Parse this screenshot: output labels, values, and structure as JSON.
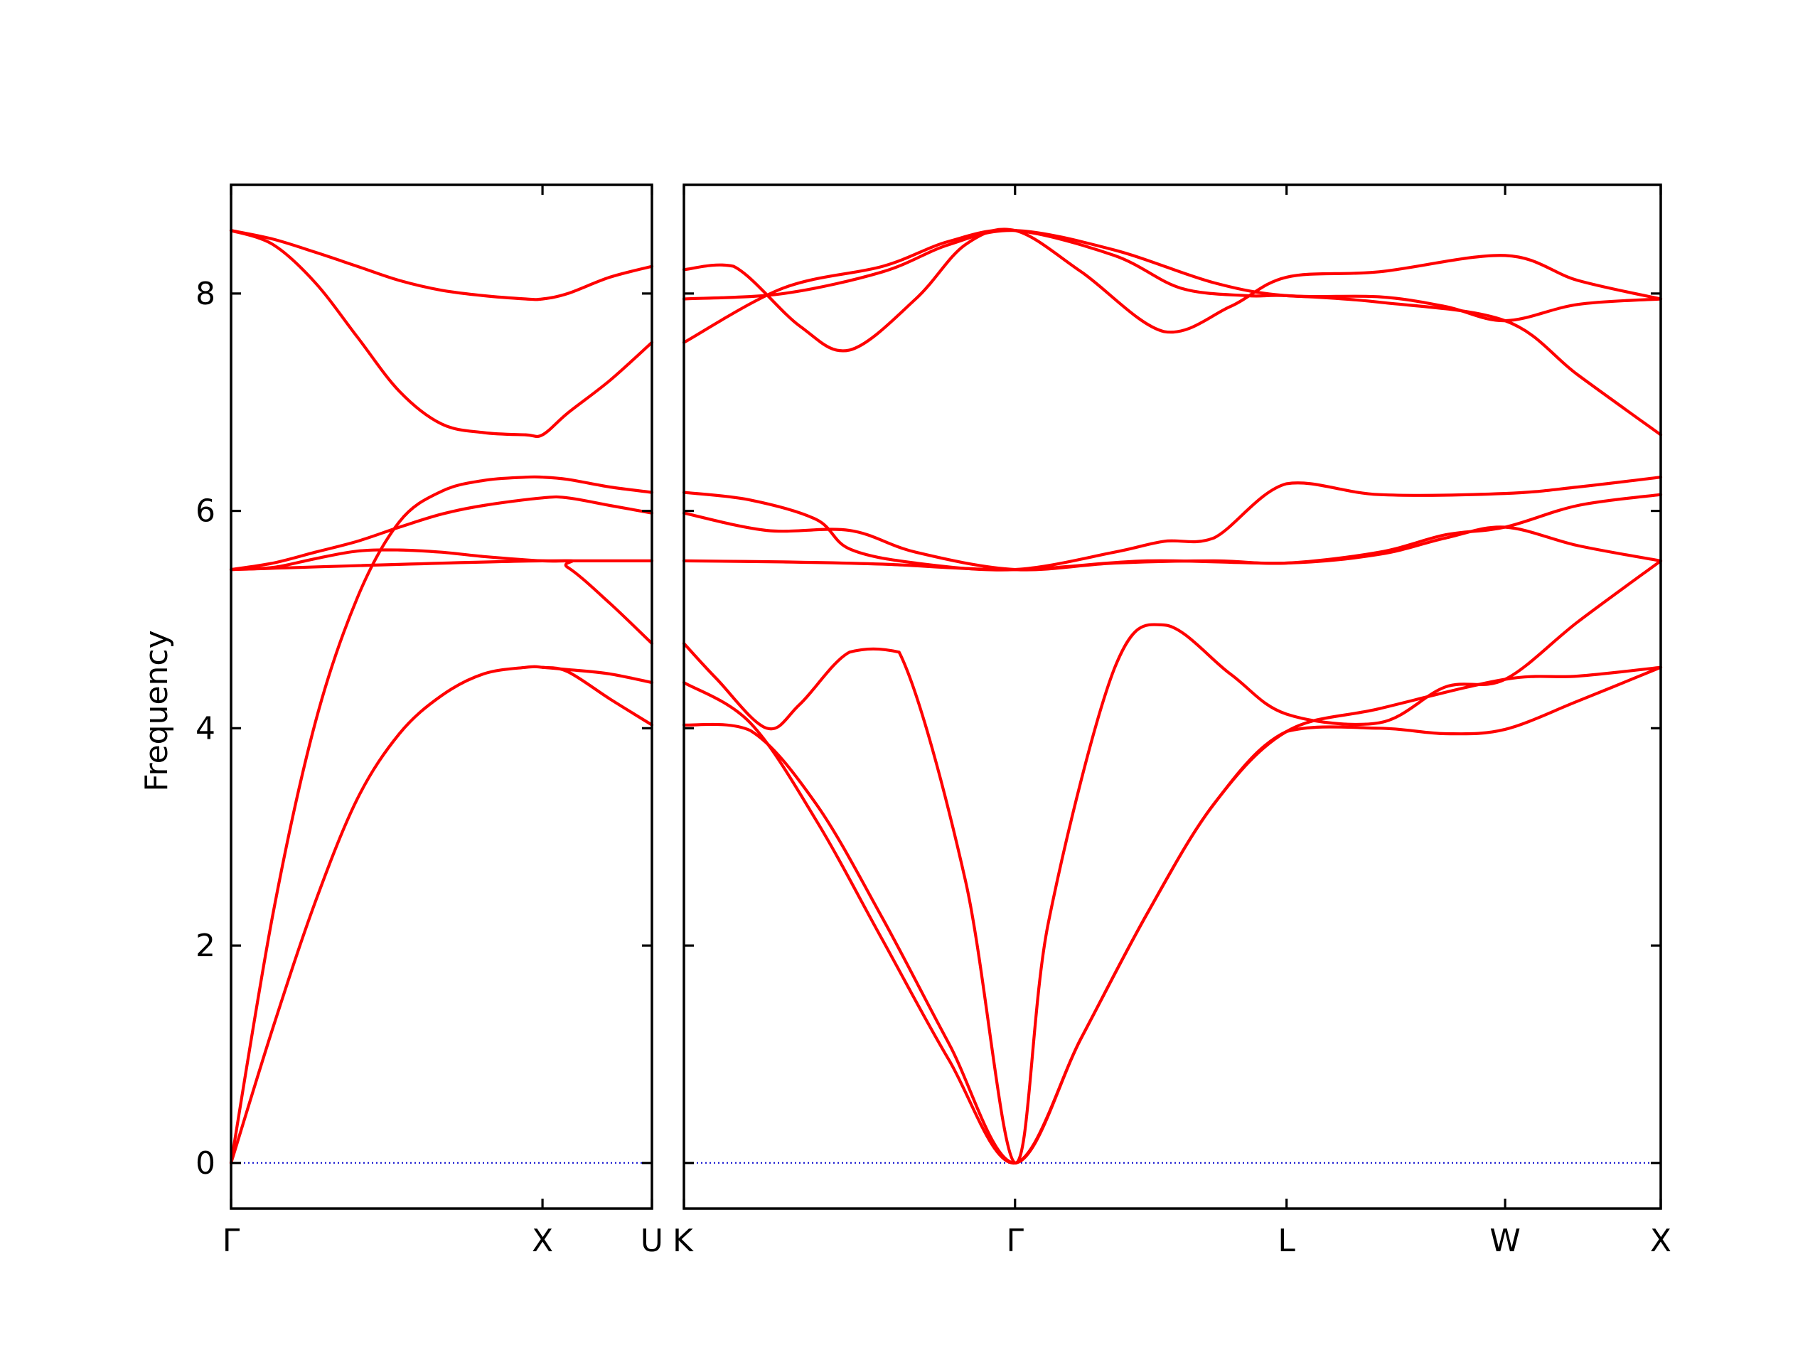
{
  "chart_data": {
    "type": "line",
    "ylabel": "Frequency",
    "ylim": [
      -0.42,
      9.0
    ],
    "yticks": [
      "0",
      "2",
      "4",
      "6",
      "8"
    ],
    "ytick_values": [
      0,
      2,
      4,
      6,
      8
    ],
    "colors": {
      "band": "#ff0000",
      "zero_line": "#0000cc",
      "axis": "#000000"
    },
    "grid": false,
    "panels": [
      {
        "xlim": [
          0,
          1.0
        ],
        "ticks": [
          {
            "x": 0,
            "label": "Γ"
          },
          {
            "x": 0.74,
            "label": "X"
          },
          {
            "x": 1.0,
            "label": "U"
          }
        ],
        "bands": [
          {
            "x": [
              0,
              0.1,
              0.2,
              0.3,
              0.4,
              0.5,
              0.6,
              0.7,
              0.74,
              0.8,
              0.9,
              1.0
            ],
            "y": [
              8.58,
              8.5,
              8.38,
              8.25,
              8.12,
              8.03,
              7.98,
              7.95,
              7.95,
              8.0,
              8.15,
              8.25
            ]
          },
          {
            "x": [
              0,
              0.1,
              0.2,
              0.3,
              0.4,
              0.5,
              0.6,
              0.7,
              0.74,
              0.8,
              0.9,
              1.0
            ],
            "y": [
              8.58,
              8.45,
              8.1,
              7.6,
              7.1,
              6.8,
              6.72,
              6.7,
              6.7,
              6.9,
              7.2,
              7.55
            ]
          },
          {
            "x": [
              0,
              0.1,
              0.2,
              0.3,
              0.4,
              0.5,
              0.6,
              0.74,
              0.8,
              0.9,
              1.0
            ],
            "y": [
              5.46,
              5.52,
              5.62,
              5.72,
              5.85,
              5.97,
              6.05,
              6.12,
              6.12,
              6.05,
              5.98
            ]
          },
          {
            "x": [
              0,
              0.1,
              0.2,
              0.3,
              0.4,
              0.5,
              0.6,
              0.74,
              0.8,
              0.9,
              1.0
            ],
            "y": [
              5.46,
              5.48,
              5.56,
              5.63,
              5.64,
              5.62,
              5.58,
              5.54,
              5.54,
              5.54,
              5.54
            ]
          },
          {
            "x": [
              0,
              0.1,
              0.2,
              0.3,
              0.4,
              0.5,
              0.6,
              0.7,
              0.74,
              0.8,
              0.9,
              1.0
            ],
            "y": [
              0.0,
              2.3,
              4.05,
              5.2,
              5.9,
              6.18,
              6.28,
              6.31,
              6.31,
              6.29,
              6.22,
              6.17
            ]
          },
          {
            "x": [
              0,
              0.74,
              0.8,
              0.9,
              1.0
            ],
            "y": [
              5.46,
              5.54,
              5.48,
              5.15,
              4.78
            ]
          },
          {
            "x": [
              0,
              0.1,
              0.2,
              0.3,
              0.4,
              0.5,
              0.6,
              0.7,
              0.74,
              0.8,
              0.9,
              1.0
            ],
            "y": [
              0.0,
              1.25,
              2.4,
              3.35,
              3.95,
              4.3,
              4.5,
              4.56,
              4.56,
              4.52,
              4.27,
              4.03
            ]
          },
          {
            "x": [
              0.74,
              0.8,
              0.9,
              1.0
            ],
            "y": [
              4.56,
              4.54,
              4.5,
              4.42
            ]
          }
        ],
        "zero_line": true
      },
      {
        "xlim": [
          0,
          2.95
        ],
        "ticks": [
          {
            "x": 0,
            "label": "K"
          },
          {
            "x": 1.0,
            "label": "Γ"
          },
          {
            "x": 1.82,
            "label": "L"
          },
          {
            "x": 2.48,
            "label": "W"
          },
          {
            "x": 2.95,
            "label": "X"
          }
        ],
        "bands": [
          {
            "x": [
              0,
              0.3,
              0.6,
              0.8,
              1.0,
              1.3,
              1.6,
              1.82,
              2.1,
              2.3,
              2.48,
              2.7,
              2.95
            ],
            "y": [
              7.95,
              8.0,
              8.2,
              8.45,
              8.58,
              8.4,
              8.1,
              7.98,
              7.97,
              7.88,
              7.75,
              7.9,
              7.95
            ]
          },
          {
            "x": [
              0,
              0.3,
              0.6,
              0.8,
              1.0,
              1.3,
              1.5,
              1.7,
              1.82,
              2.1,
              2.48,
              2.7,
              2.95
            ],
            "y": [
              7.55,
              8.05,
              8.25,
              8.48,
              8.58,
              8.35,
              8.05,
              7.98,
              7.98,
              7.92,
              7.75,
              7.25,
              6.7
            ]
          },
          {
            "x": [
              0,
              0.15,
              0.35,
              0.5,
              0.7,
              0.85,
              1.0,
              1.2,
              1.45,
              1.65,
              1.82,
              2.1,
              2.48,
              2.7,
              2.95
            ],
            "y": [
              8.22,
              8.25,
              7.7,
              7.48,
              7.95,
              8.45,
              8.58,
              8.2,
              7.65,
              7.88,
              8.15,
              8.2,
              8.35,
              8.12,
              7.95
            ]
          },
          {
            "x": [
              0,
              0.2,
              0.4,
              0.5,
              0.7,
              1.0,
              1.3,
              1.45,
              1.6,
              1.82,
              2.1,
              2.48,
              2.7,
              2.95
            ],
            "y": [
              6.17,
              6.1,
              5.92,
              5.65,
              5.52,
              5.46,
              5.62,
              5.72,
              5.75,
              6.25,
              6.15,
              6.16,
              6.22,
              6.31
            ]
          },
          {
            "x": [
              0,
              0.25,
              0.5,
              0.7,
              1.0,
              1.3,
              1.6,
              1.82,
              2.1,
              2.3,
              2.48,
              2.7,
              2.95
            ],
            "y": [
              5.98,
              5.82,
              5.82,
              5.62,
              5.46,
              5.52,
              5.54,
              5.52,
              5.62,
              5.78,
              5.85,
              6.05,
              6.15
            ]
          },
          {
            "x": [
              0,
              0.3,
              0.6,
              1.0,
              1.4,
              1.82,
              2.1,
              2.3,
              2.48,
              2.7,
              2.95
            ],
            "y": [
              5.54,
              5.53,
              5.51,
              5.46,
              5.54,
              5.52,
              5.6,
              5.75,
              5.85,
              5.68,
              5.54
            ]
          },
          {
            "x": [
              0,
              0.1,
              0.25,
              0.35,
              0.5,
              0.65,
              0.85,
              1.0,
              1.1,
              1.3,
              1.45,
              1.65,
              1.82,
              2.1,
              2.3,
              2.48,
              2.7,
              2.95
            ],
            "y": [
              4.78,
              4.45,
              4.0,
              4.22,
              4.7,
              4.7,
              2.6,
              0.0,
              2.2,
              4.55,
              4.95,
              4.5,
              4.13,
              4.05,
              4.38,
              4.45,
              4.98,
              5.54
            ]
          },
          {
            "x": [
              0,
              0.2,
              0.4,
              0.6,
              0.8,
              1.0,
              1.2,
              1.4,
              1.6,
              1.82,
              2.1,
              2.48,
              2.7,
              2.95
            ],
            "y": [
              4.42,
              4.05,
              3.15,
              2.05,
              0.95,
              0.0,
              1.15,
              2.3,
              3.3,
              3.97,
              4.18,
              4.45,
              4.48,
              4.56
            ]
          },
          {
            "x": [
              0,
              0.2,
              0.4,
              0.6,
              0.8,
              1.0,
              1.2,
              1.4,
              1.6,
              1.82,
              2.1,
              2.3,
              2.48,
              2.7,
              2.95
            ],
            "y": [
              4.03,
              3.98,
              3.3,
              2.25,
              1.1,
              0.0,
              1.15,
              2.3,
              3.3,
              3.97,
              4.0,
              3.95,
              3.99,
              4.25,
              4.56
            ]
          }
        ],
        "zero_line": true
      }
    ]
  }
}
